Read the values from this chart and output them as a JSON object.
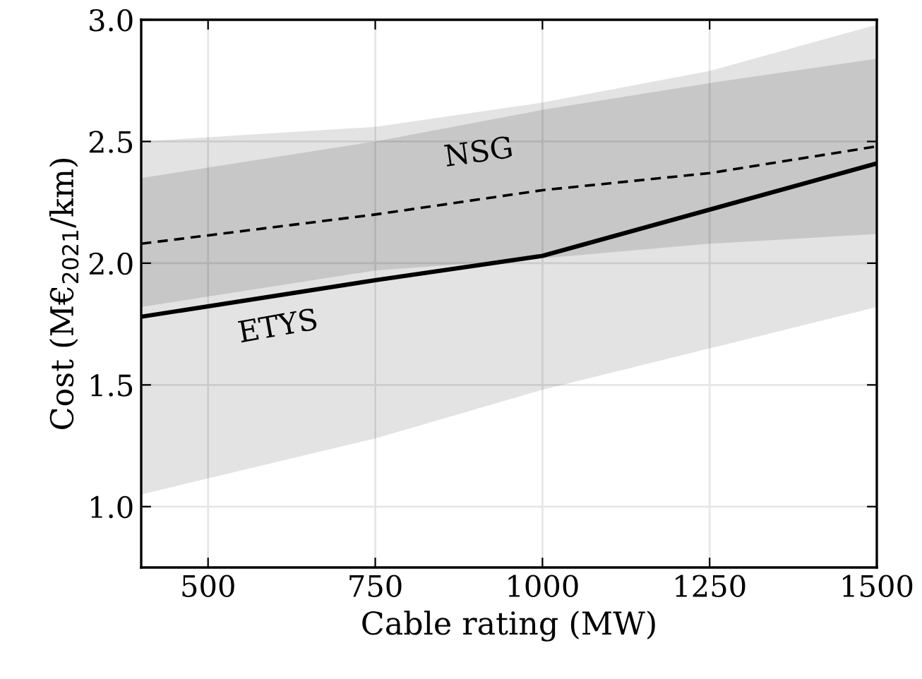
{
  "chart_data": {
    "type": "line",
    "xlabel": "Cable rating (MW)",
    "ylabel": "Cost (M€$_{2021}$/km)",
    "x": [
      400,
      750,
      1000,
      1250,
      1500
    ],
    "series": [
      {
        "name": "NSG",
        "color": "#000000",
        "line_style": "dashed",
        "values": [
          2.08,
          2.2,
          2.3,
          2.37,
          2.48
        ],
        "lower": [
          1.82,
          1.97,
          2.02,
          2.08,
          2.12
        ],
        "upper": [
          2.35,
          2.5,
          2.63,
          2.74,
          2.84
        ]
      },
      {
        "name": "ETYS",
        "color": "#000000",
        "line_style": "solid",
        "values": [
          1.78,
          1.93,
          2.03,
          2.22,
          2.41
        ],
        "lower": [
          1.05,
          1.28,
          1.48,
          1.65,
          1.82
        ],
        "upper": [
          2.5,
          2.56,
          2.66,
          2.79,
          2.98
        ]
      }
    ],
    "xlim": [
      400,
      1500
    ],
    "xticks": [
      500,
      750,
      1000,
      1250,
      1500
    ],
    "ylim": [
      0.75,
      3.0
    ],
    "yticks": [
      {
        "value": 1.0,
        "label": "1.0"
      },
      {
        "value": 1.5,
        "label": "1.5"
      },
      {
        "value": 2.0,
        "label": "2.0"
      },
      {
        "value": 2.5,
        "label": "2.5"
      },
      {
        "value": 3.0,
        "label": "3.0"
      }
    ],
    "grid": true,
    "legend": false
  }
}
